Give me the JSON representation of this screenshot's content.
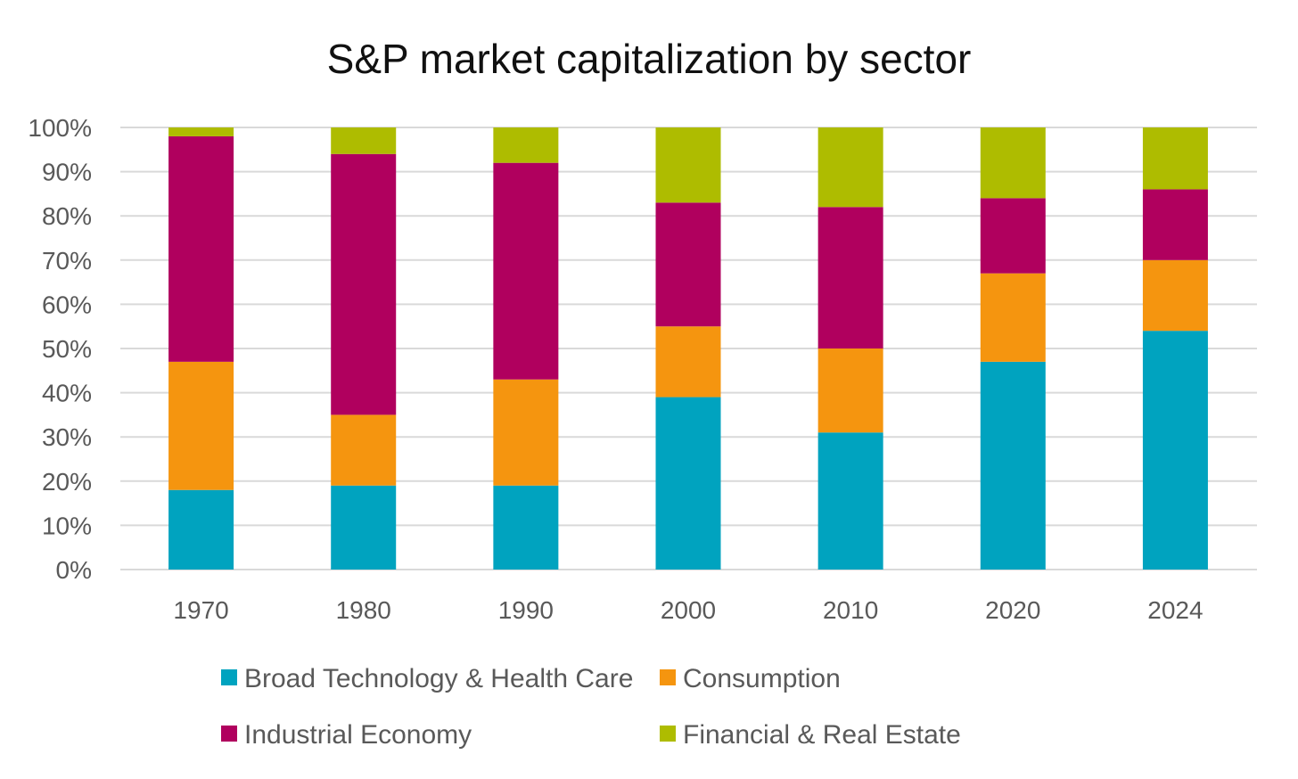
{
  "chart_data": {
    "type": "bar",
    "stacked": true,
    "title": "S&P market capitalization by sector",
    "xlabel": "",
    "ylabel": "",
    "categories": [
      "1970",
      "1980",
      "1990",
      "2000",
      "2010",
      "2020",
      "2024"
    ],
    "ylim": [
      0,
      100
    ],
    "yticks": [
      {
        "value": 0,
        "label": "0%"
      },
      {
        "value": 10,
        "label": "10%"
      },
      {
        "value": 20,
        "label": "20%"
      },
      {
        "value": 30,
        "label": "30%"
      },
      {
        "value": 40,
        "label": "40%"
      },
      {
        "value": 50,
        "label": "50%"
      },
      {
        "value": 60,
        "label": "60%"
      },
      {
        "value": 70,
        "label": "70%"
      },
      {
        "value": 80,
        "label": "80%"
      },
      {
        "value": 90,
        "label": "90%"
      },
      {
        "value": 100,
        "label": "100%"
      }
    ],
    "grid": true,
    "legend_position": "bottom",
    "series": [
      {
        "name": "Broad Technology & Health Care",
        "color": "#00a3bf",
        "values": [
          18,
          19,
          19,
          39,
          31,
          47,
          54
        ]
      },
      {
        "name": "Consumption",
        "color": "#f5950f",
        "values": [
          29,
          16,
          24,
          16,
          19,
          20,
          16
        ]
      },
      {
        "name": "Industrial Economy",
        "color": "#b0005e",
        "values": [
          51,
          59,
          49,
          28,
          32,
          17,
          16
        ]
      },
      {
        "name": "Financial & Real Estate",
        "color": "#aebc00",
        "values": [
          2,
          6,
          8,
          17,
          18,
          16,
          14
        ]
      }
    ]
  }
}
